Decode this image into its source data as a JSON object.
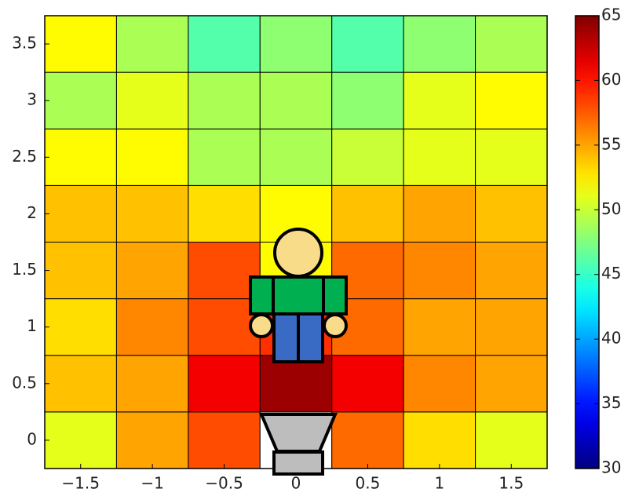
{
  "chart_data": {
    "type": "heatmap",
    "x": [
      -1.5,
      -1,
      -0.5,
      0,
      0.5,
      1,
      1.5
    ],
    "y": [
      0,
      0.5,
      1,
      1.5,
      2,
      2.5,
      3,
      3.5
    ],
    "z": [
      [
        51,
        55,
        58,
        null,
        57,
        53,
        51
      ],
      [
        54,
        55,
        61,
        64,
        61,
        56,
        55
      ],
      [
        53,
        56,
        58,
        59,
        57,
        55,
        55
      ],
      [
        54,
        55,
        58,
        52,
        57,
        56,
        55
      ],
      [
        54,
        54,
        53,
        52,
        54,
        55,
        54
      ],
      [
        52,
        52,
        49,
        49,
        50,
        51,
        51
      ],
      [
        49,
        51,
        49,
        49,
        48,
        51,
        52
      ],
      [
        52,
        49,
        46,
        48,
        46,
        48,
        49
      ]
    ],
    "xlim": [
      -1.75,
      1.75
    ],
    "xticks": [
      {
        "value": -1.5,
        "label": "−1.5"
      },
      {
        "value": -1,
        "label": "−1"
      },
      {
        "value": -0.5,
        "label": "−0.5"
      },
      0,
      0.5,
      1,
      1.5
    ],
    "ylim": [
      -0.25,
      3.75
    ],
    "yticks": [
      0,
      0.5,
      1,
      1.5,
      2,
      2.5,
      3,
      3.5
    ],
    "colormap": "jet",
    "clim": [
      30,
      65
    ],
    "cticks": [
      30,
      35,
      40,
      45,
      50,
      55,
      60,
      65
    ]
  }
}
